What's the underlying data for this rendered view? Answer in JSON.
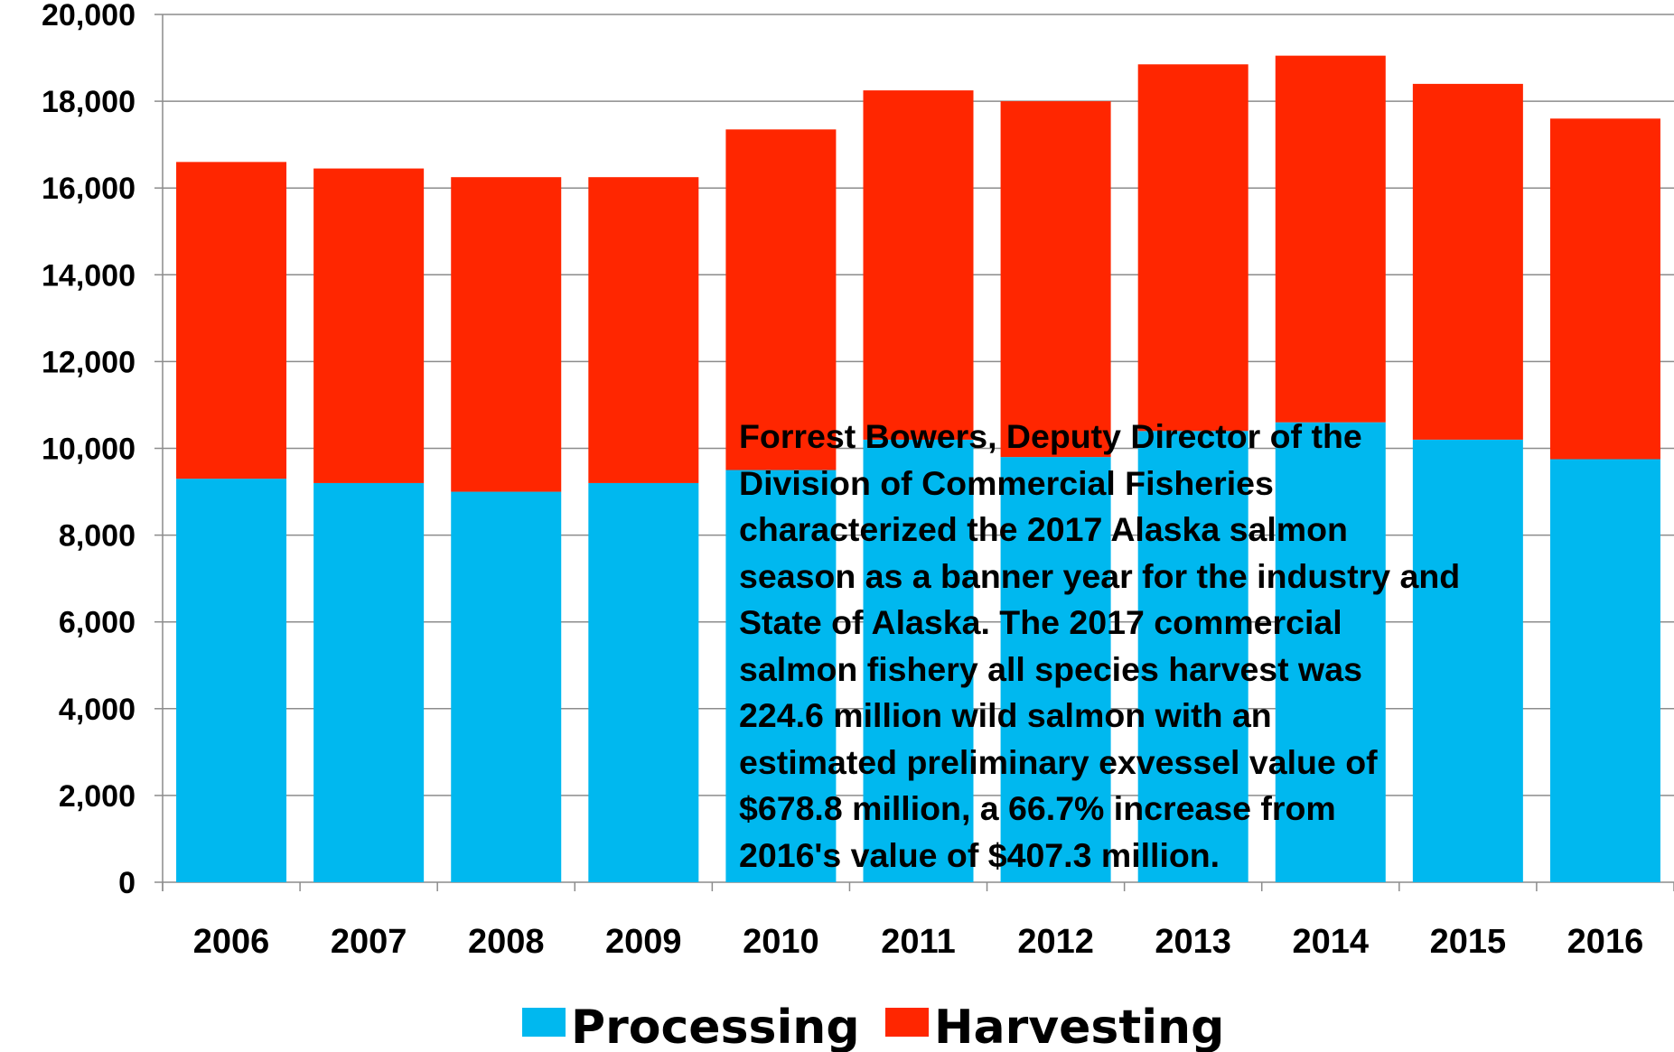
{
  "chart_data": {
    "type": "bar",
    "stacked": true,
    "categories": [
      "2006",
      "2007",
      "2008",
      "2009",
      "2010",
      "2011",
      "2012",
      "2013",
      "2014",
      "2015",
      "2016"
    ],
    "series": [
      {
        "name": "Processing",
        "color": "#00b8ef",
        "values": [
          9300,
          9200,
          9000,
          9200,
          9500,
          10200,
          9800,
          10400,
          10600,
          10200,
          9750
        ]
      },
      {
        "name": "Harvesting",
        "color": "#ff2600",
        "values": [
          7300,
          7250,
          7250,
          7050,
          7850,
          8050,
          8200,
          8450,
          8450,
          8200,
          7850
        ]
      }
    ],
    "ylim": [
      0,
      20000
    ],
    "yticks": [
      "0",
      "2,000",
      "4,000",
      "6,000",
      "8,000",
      "10,000",
      "12,000",
      "14,000",
      "16,000",
      "18,000",
      "20,000"
    ],
    "grid": true,
    "legend_position": "bottom",
    "annotation": "Forrest Bowers, Deputy Director of the\nDivision of Commercial Fisheries\ncharacterized the 2017 Alaska salmon\nseason as a banner year for the industry and\nState of Alaska. The 2017 commercial\nsalmon fishery all species harvest was\n224.6 million wild salmon with an\nestimated preliminary exvessel value of\n$678.8 million, a 66.7% increase from\n2016's value of $407.3 million."
  }
}
